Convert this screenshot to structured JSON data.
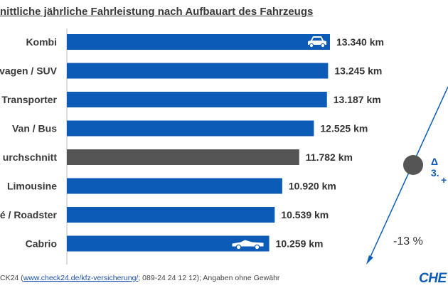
{
  "title": "nittliche jährliche Fahrleistung nach Aufbauart des Fahrzeugs",
  "chart_data": {
    "type": "bar",
    "orientation": "horizontal",
    "categories": [
      "Kombi",
      "vagen / SUV",
      "Transporter",
      "Van / Bus",
      "urchschnitt",
      "Limousine",
      "é / Roadster",
      "Cabrio"
    ],
    "values": [
      13340,
      13245,
      13187,
      12525,
      11782,
      10920,
      10539,
      10259
    ],
    "value_labels": [
      "13.340 km",
      "13.245 km",
      "13.187 km",
      "12.525 km",
      "11.782 km",
      "10.920 km",
      "10.539 km",
      "10.259 km"
    ],
    "colors": [
      "#0c5bb6",
      "#0c5bb6",
      "#0c5bb6",
      "#0c5bb6",
      "#555555",
      "#0c5bb6",
      "#0c5bb6",
      "#0c5bb6"
    ],
    "icons": [
      "car-icon",
      null,
      null,
      null,
      null,
      null,
      null,
      "convertible-icon"
    ],
    "gridlines": false,
    "annotations": [
      "Δ 3.",
      "+",
      "-13 %"
    ]
  },
  "footer": {
    "prefix": "CK24 (",
    "link": "www.check24.de/kfz-versicherung/",
    "suffix": "; 089-24 24 12 12); Angaben ohne Gewähr"
  },
  "brand": "CHE",
  "annotations": {
    "delta": "Δ 3.",
    "plus": "+",
    "minus": "-13 %"
  }
}
